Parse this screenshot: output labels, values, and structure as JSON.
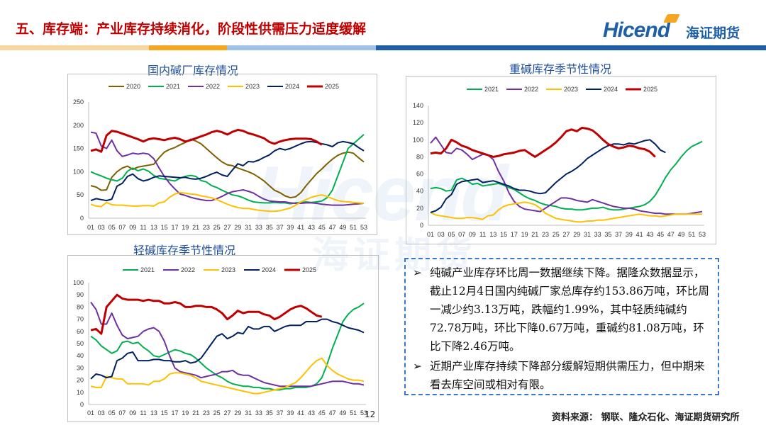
{
  "header": {
    "title": "五、库存端：产业库存持续消化，阶段性供需压力适度缓解",
    "logo_en": "Hicend",
    "logo_cn": "海证期货"
  },
  "watermark": {
    "en": "Hicend",
    "cn": "海证期货"
  },
  "text_box": {
    "bullet1": "纯碱产业库存环比周一数据继续下降。据隆众数据显示，截止12月4日国内纯碱厂家总库存约153.86万吨，环比周一减少约3.13万吨，跌幅约1.99%，其中轻质纯碱约72.78万吨，环比下降0.67万吨，重碱约81.08万吨，环比下降2.46万吨。",
    "bullet2": "近期产业库存持续下降部分缓解短期供需压力，但中期来看去库空间或相对有限。",
    "bullet_symbol": "➢"
  },
  "source": "资料来源： 钢联、隆众石化、海证期货研究所",
  "page_number": "12",
  "colors": {
    "2020": "#7f6000",
    "2021": "#00b050",
    "2022": "#7030a0",
    "2023": "#ffc000",
    "2024": "#002060",
    "2025": "#c00000",
    "title_red": "#c00000",
    "brand_blue": "#1f5fa8",
    "orange": "#f5a623"
  },
  "chart_data": [
    {
      "id": "domestic",
      "type": "line",
      "title": "国内碱厂库存情况",
      "xlabel": "",
      "ylabel": "",
      "ylim": [
        0,
        250
      ],
      "yticks": [
        0,
        50,
        100,
        150,
        200,
        250
      ],
      "x_ticks": [
        "01",
        "03",
        "05",
        "07",
        "09",
        "11",
        "13",
        "15",
        "17",
        "19",
        "21",
        "23",
        "25",
        "27",
        "29",
        "31",
        "33",
        "35",
        "37",
        "39",
        "41",
        "43",
        "45",
        "47",
        "49",
        "51",
        "53"
      ],
      "series": [
        {
          "name": "2020",
          "color": "#7f6000",
          "values": [
            70,
            67,
            60,
            61,
            88,
            100,
            108,
            112,
            105,
            110,
            112,
            114,
            116,
            130,
            142,
            148,
            152,
            158,
            163,
            170,
            166,
            160,
            150,
            140,
            130,
            121,
            115,
            113,
            108,
            104,
            100,
            95,
            88,
            80,
            70,
            60,
            55,
            48,
            44,
            46,
            55,
            70,
            83,
            96,
            106,
            117,
            127,
            135,
            140,
            142,
            140,
            130,
            121
          ]
        },
        {
          "name": "2021",
          "color": "#00b050",
          "values": [
            100,
            95,
            91,
            86,
            83,
            80,
            86,
            101,
            108,
            102,
            106,
            101,
            92,
            86,
            84,
            82,
            80,
            86,
            90,
            92,
            90,
            81,
            78,
            70,
            66,
            60,
            55,
            50,
            48,
            44,
            39,
            35,
            34,
            33,
            33,
            34,
            33,
            33,
            31,
            33,
            34,
            35,
            34,
            35,
            37,
            44,
            60,
            90,
            120,
            150,
            160,
            170,
            180
          ]
        },
        {
          "name": "2022",
          "color": "#7030a0",
          "values": [
            185,
            183,
            155,
            150,
            168,
            145,
            133,
            136,
            140,
            138,
            140,
            138,
            128,
            108,
            90,
            75,
            63,
            52,
            49,
            45,
            42,
            40,
            38,
            38,
            42,
            47,
            53,
            57,
            59,
            61,
            58,
            54,
            47,
            41,
            37,
            36,
            35,
            35,
            33,
            32,
            32,
            33,
            33,
            32,
            30,
            29,
            28,
            28,
            28,
            29,
            30,
            31,
            32
          ]
        },
        {
          "name": "2023",
          "color": "#ffc000",
          "values": [
            30,
            26,
            25,
            34,
            29,
            28,
            28,
            27,
            26,
            26,
            27,
            27,
            26,
            33,
            35,
            45,
            52,
            55,
            54,
            52,
            51,
            48,
            46,
            44,
            40,
            35,
            30,
            26,
            23,
            21,
            21,
            19,
            17,
            16,
            15,
            15,
            16,
            19,
            22,
            28,
            35,
            40,
            45,
            48,
            50,
            47,
            42,
            38,
            36,
            35,
            34,
            33,
            32
          ]
        },
        {
          "name": "2024",
          "color": "#002060",
          "values": [
            38,
            42,
            40,
            38,
            41,
            69,
            75,
            90,
            95,
            85,
            80,
            83,
            88,
            91,
            90,
            89,
            88,
            87,
            88,
            85,
            84,
            86,
            90,
            95,
            99,
            93,
            90,
            104,
            117,
            113,
            122,
            121,
            125,
            131,
            136,
            145,
            150,
            147,
            150,
            155,
            160,
            164,
            165,
            163,
            160,
            158,
            154,
            162,
            165,
            163,
            160,
            152,
            145
          ]
        },
        {
          "name": "2025",
          "color": "#c00000",
          "values": [
            145,
            148,
            143,
            178,
            188,
            186,
            182,
            178,
            174,
            170,
            165,
            170,
            172,
            170,
            168,
            171,
            173,
            170,
            165,
            168,
            172,
            176,
            180,
            185,
            188,
            185,
            180,
            186,
            190,
            188,
            183,
            180,
            176,
            172,
            164,
            160,
            165,
            168,
            170,
            171,
            171,
            171,
            170,
            165,
            158
          ]
        }
      ]
    },
    {
      "id": "heavy",
      "type": "line",
      "title": "重碱库存季节性情况",
      "xlabel": "",
      "ylabel": "",
      "ylim": [
        0,
        140
      ],
      "yticks": [
        0,
        20,
        40,
        60,
        80,
        100,
        120,
        140
      ],
      "x_ticks": [
        "01",
        "03",
        "05",
        "07",
        "09",
        "11",
        "13",
        "15",
        "17",
        "19",
        "21",
        "23",
        "25",
        "27",
        "29",
        "31",
        "33",
        "35",
        "37",
        "39",
        "41",
        "43",
        "45",
        "47",
        "49",
        "51",
        "53"
      ],
      "series": [
        {
          "name": "2021",
          "color": "#00b050",
          "values": [
            43,
            44,
            43,
            40,
            41,
            53,
            55,
            52,
            48,
            49,
            46,
            47,
            48,
            49,
            47,
            44,
            42,
            38,
            34,
            31,
            29,
            26,
            24,
            23,
            22,
            20,
            19,
            19,
            18,
            18,
            19,
            20,
            20,
            21,
            19,
            18,
            18,
            19,
            20,
            21,
            22,
            24,
            28,
            35,
            45,
            56,
            65,
            72,
            80,
            87,
            92,
            95,
            98
          ]
        },
        {
          "name": "2022",
          "color": "#7030a0",
          "values": [
            96,
            103,
            94,
            85,
            84,
            90,
            88,
            83,
            77,
            80,
            83,
            82,
            77,
            63,
            52,
            38,
            28,
            22,
            19,
            18,
            17,
            16,
            20,
            24,
            28,
            32,
            32,
            31,
            29,
            28,
            27,
            30,
            28,
            26,
            24,
            22,
            21,
            20,
            20,
            19,
            17,
            16,
            15,
            14,
            14,
            13,
            13,
            13,
            13,
            13,
            14,
            15,
            16
          ]
        },
        {
          "name": "2023",
          "color": "#ffc000",
          "values": [
            15,
            12,
            11,
            10,
            9,
            8,
            8,
            9,
            9,
            8,
            7,
            11,
            12,
            18,
            22,
            24,
            25,
            26,
            27,
            26,
            24,
            20,
            14,
            11,
            8,
            7,
            6,
            5,
            4,
            4,
            5,
            5,
            6,
            6,
            7,
            8,
            9,
            10,
            11,
            12,
            13,
            12,
            11,
            11,
            10,
            11,
            12,
            13,
            13,
            13,
            13,
            13,
            13
          ]
        },
        {
          "name": "2024",
          "color": "#002060",
          "values": [
            15,
            17,
            21,
            31,
            36,
            48,
            51,
            52,
            53,
            54,
            50,
            51,
            52,
            50,
            48,
            46,
            43,
            41,
            41,
            40,
            38,
            37,
            38,
            44,
            50,
            55,
            60,
            63,
            67,
            72,
            78,
            82,
            86,
            90,
            93,
            95,
            95,
            94,
            96,
            95,
            97,
            99,
            100,
            95,
            88,
            85
          ]
        },
        {
          "name": "2025",
          "color": "#c00000",
          "values": [
            84,
            85,
            84,
            90,
            100,
            97,
            93,
            91,
            88,
            86,
            84,
            82,
            80,
            81,
            83,
            84,
            85,
            87,
            88,
            84,
            80,
            84,
            88,
            92,
            97,
            103,
            110,
            112,
            110,
            114,
            113,
            111,
            106,
            100,
            95,
            92,
            90,
            91,
            93,
            92,
            90,
            89,
            86,
            80
          ]
        }
      ]
    },
    {
      "id": "light",
      "type": "line",
      "title": "轻碱库存季节性情况",
      "xlabel": "",
      "ylabel": "",
      "ylim": [
        0,
        100
      ],
      "yticks": [
        0,
        10,
        20,
        30,
        40,
        50,
        60,
        70,
        80,
        90,
        100
      ],
      "x_ticks": [
        "01",
        "03",
        "05",
        "07",
        "09",
        "11",
        "13",
        "15",
        "17",
        "19",
        "21",
        "23",
        "25",
        "27",
        "29",
        "31",
        "33",
        "35",
        "37",
        "39",
        "41",
        "43",
        "45",
        "47",
        "49",
        "51",
        "53"
      ],
      "series": [
        {
          "name": "2021",
          "color": "#00b050",
          "values": [
            56,
            53,
            48,
            45,
            42,
            44,
            51,
            52,
            50,
            51,
            47,
            44,
            40,
            39,
            41,
            43,
            45,
            44,
            42,
            41,
            38,
            34,
            30,
            27,
            24,
            22,
            19,
            17,
            16,
            15,
            15,
            14,
            14,
            13,
            13,
            12,
            12,
            13,
            13,
            14,
            14,
            14,
            15,
            17,
            22,
            33,
            46,
            57,
            68,
            74,
            78,
            80,
            83
          ]
        },
        {
          "name": "2022",
          "color": "#7030a0",
          "values": [
            84,
            78,
            66,
            66,
            75,
            65,
            57,
            54,
            55,
            56,
            60,
            62,
            63,
            60,
            52,
            40,
            30,
            27,
            26,
            25,
            24,
            22,
            23,
            24,
            25,
            27,
            27,
            28,
            25,
            24,
            24,
            22,
            20,
            18,
            17,
            16,
            15,
            15,
            15,
            15,
            15,
            15,
            15,
            16,
            17,
            18,
            19,
            19,
            19,
            18,
            17,
            17,
            16
          ]
        },
        {
          "name": "2023",
          "color": "#ffc000",
          "values": [
            15,
            14,
            14,
            23,
            22,
            21,
            21,
            17,
            17,
            17,
            17,
            16,
            19,
            19,
            21,
            25,
            26,
            26,
            25,
            24,
            22,
            19,
            18,
            17,
            16,
            15,
            14,
            13,
            12,
            11,
            10,
            9,
            9,
            10,
            11,
            12,
            13,
            14,
            16,
            18,
            22,
            27,
            32,
            36,
            38,
            32,
            28,
            25,
            23,
            21,
            20,
            20,
            19
          ]
        },
        {
          "name": "2024",
          "color": "#002060",
          "values": [
            21,
            25,
            24,
            22,
            23,
            36,
            38,
            42,
            43,
            36,
            36,
            36,
            37,
            37,
            36,
            36,
            35,
            35,
            36,
            34,
            35,
            38,
            44,
            50,
            56,
            58,
            54,
            56,
            59,
            58,
            64,
            62,
            62,
            64,
            64,
            60,
            62,
            64,
            65,
            65,
            65,
            68,
            68,
            68,
            70,
            70,
            68,
            67,
            65,
            63,
            62,
            61,
            59
          ]
        },
        {
          "name": "2025",
          "color": "#c00000",
          "values": [
            61,
            62,
            58,
            80,
            85,
            90,
            87,
            86,
            86,
            86,
            85,
            86,
            85,
            85,
            83,
            83,
            84,
            83,
            80,
            80,
            81,
            81,
            80,
            80,
            78,
            75,
            70,
            73,
            77,
            75,
            76,
            76,
            76,
            74,
            73,
            70,
            72,
            75,
            78,
            80,
            81,
            79,
            76,
            73,
            72
          ]
        }
      ]
    }
  ]
}
